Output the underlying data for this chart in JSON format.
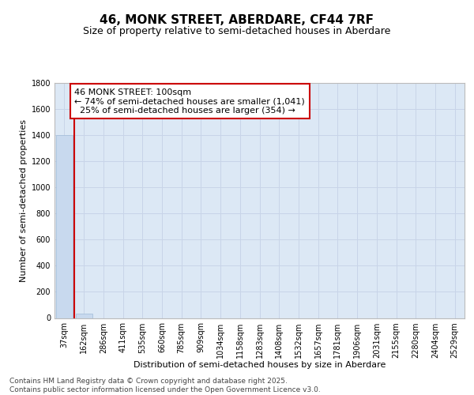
{
  "title": "46, MONK STREET, ABERDARE, CF44 7RF",
  "subtitle": "Size of property relative to semi-detached houses in Aberdare",
  "xlabel": "Distribution of semi-detached houses by size in Aberdare",
  "ylabel": "Number of semi-detached properties",
  "categories": [
    "37sqm",
    "162sqm",
    "286sqm",
    "411sqm",
    "535sqm",
    "660sqm",
    "785sqm",
    "909sqm",
    "1034sqm",
    "1158sqm",
    "1283sqm",
    "1408sqm",
    "1532sqm",
    "1657sqm",
    "1781sqm",
    "1906sqm",
    "2031sqm",
    "2155sqm",
    "2280sqm",
    "2404sqm",
    "2529sqm"
  ],
  "values": [
    1400,
    35,
    0,
    0,
    0,
    0,
    0,
    0,
    0,
    0,
    0,
    0,
    0,
    0,
    0,
    0,
    0,
    0,
    0,
    0,
    0
  ],
  "bar_color": "#c8d9ee",
  "bar_edge_color": "#a0bcd8",
  "ylim": [
    0,
    1800
  ],
  "yticks": [
    0,
    200,
    400,
    600,
    800,
    1000,
    1200,
    1400,
    1600,
    1800
  ],
  "property_label": "46 MONK STREET: 100sqm",
  "annotation_line1": "← 74% of semi-detached houses are smaller (1,041)",
  "annotation_line2": "  25% of semi-detached houses are larger (354) →",
  "red_line_x": 0.5,
  "red_line_color": "#cc0000",
  "annotation_box_color": "#ffffff",
  "annotation_box_edge": "#cc0000",
  "grid_color": "#c8d4e8",
  "background_color": "#dce8f5",
  "footer_text": "Contains HM Land Registry data © Crown copyright and database right 2025.\nContains public sector information licensed under the Open Government Licence v3.0.",
  "title_fontsize": 11,
  "subtitle_fontsize": 9,
  "xlabel_fontsize": 8,
  "ylabel_fontsize": 8,
  "tick_fontsize": 7,
  "annotation_fontsize": 8,
  "footer_fontsize": 6.5
}
